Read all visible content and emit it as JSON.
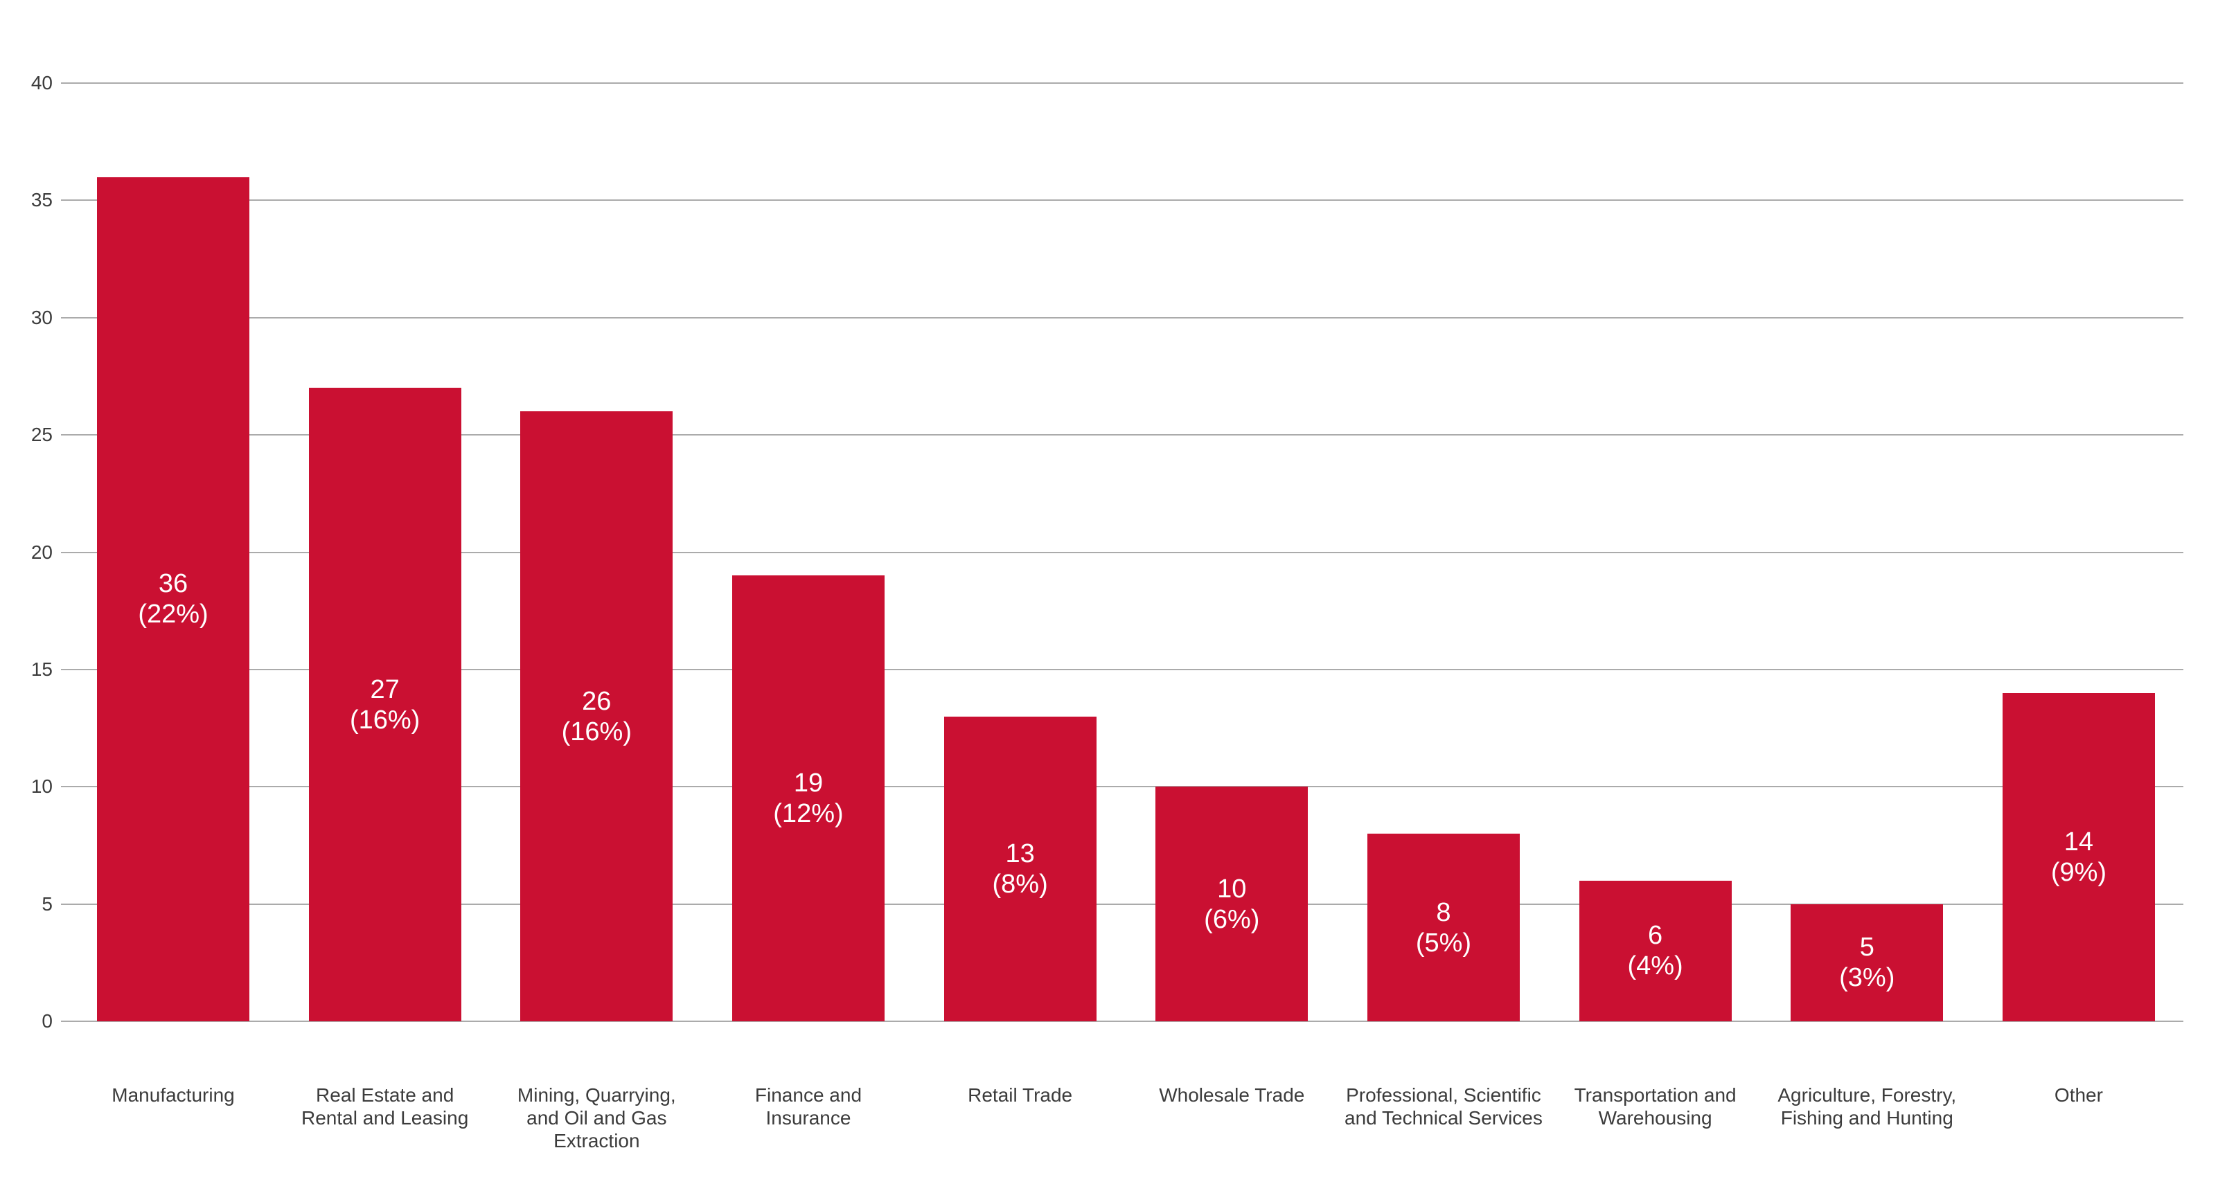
{
  "chart_data": {
    "type": "bar",
    "title": "",
    "xlabel": "",
    "ylabel": "",
    "ylim": [
      0,
      40
    ],
    "yticks": [
      0,
      5,
      10,
      15,
      20,
      25,
      30,
      35,
      40
    ],
    "grid": true,
    "legend": "none",
    "background_color": "#FFFFFF",
    "bar_color": "#CA1032",
    "bar_label_color": "#FFFFFF",
    "axis_text_color": "#3C3C3C",
    "gridline_color": "#ABABAB",
    "categories": [
      "Manufacturing",
      "Real Estate and Rental and Leasing",
      "Mining, Quarrying, and Oil and Gas Extraction",
      "Finance and Insurance",
      "Retail Trade",
      "Wholesale Trade",
      "Professional, Scientific and Technical Services",
      "Transportation and Warehousing",
      "Agriculture, Forestry, Fishing and Hunting",
      "Other"
    ],
    "category_lines": [
      [
        "Manufacturing"
      ],
      [
        "Real Estate and",
        "Rental and Leasing"
      ],
      [
        "Mining, Quarrying,",
        "and Oil and Gas",
        "Extraction"
      ],
      [
        "Finance and",
        "Insurance"
      ],
      [
        "Retail Trade"
      ],
      [
        "Wholesale Trade"
      ],
      [
        "Professional, Scientific",
        "and Technical Services"
      ],
      [
        "Transportation and",
        "Warehousing"
      ],
      [
        "Agriculture, Forestry,",
        "Fishing and Hunting"
      ],
      [
        "Other"
      ]
    ],
    "values": [
      36,
      27,
      26,
      19,
      13,
      10,
      8,
      6,
      5,
      14
    ],
    "percentages": [
      "22%",
      "16%",
      "16%",
      "12%",
      "8%",
      "6%",
      "5%",
      "4%",
      "3%",
      "9%"
    ],
    "bar_labels": [
      [
        "36",
        "(22%)"
      ],
      [
        "27",
        "(16%)"
      ],
      [
        "26",
        "(16%)"
      ],
      [
        "19",
        "(12%)"
      ],
      [
        "13",
        "(8%)"
      ],
      [
        "10",
        "(6%)"
      ],
      [
        "8",
        "(5%)"
      ],
      [
        "6",
        "(4%)"
      ],
      [
        "5",
        "(3%)"
      ],
      [
        "14",
        "(9%)"
      ]
    ]
  }
}
